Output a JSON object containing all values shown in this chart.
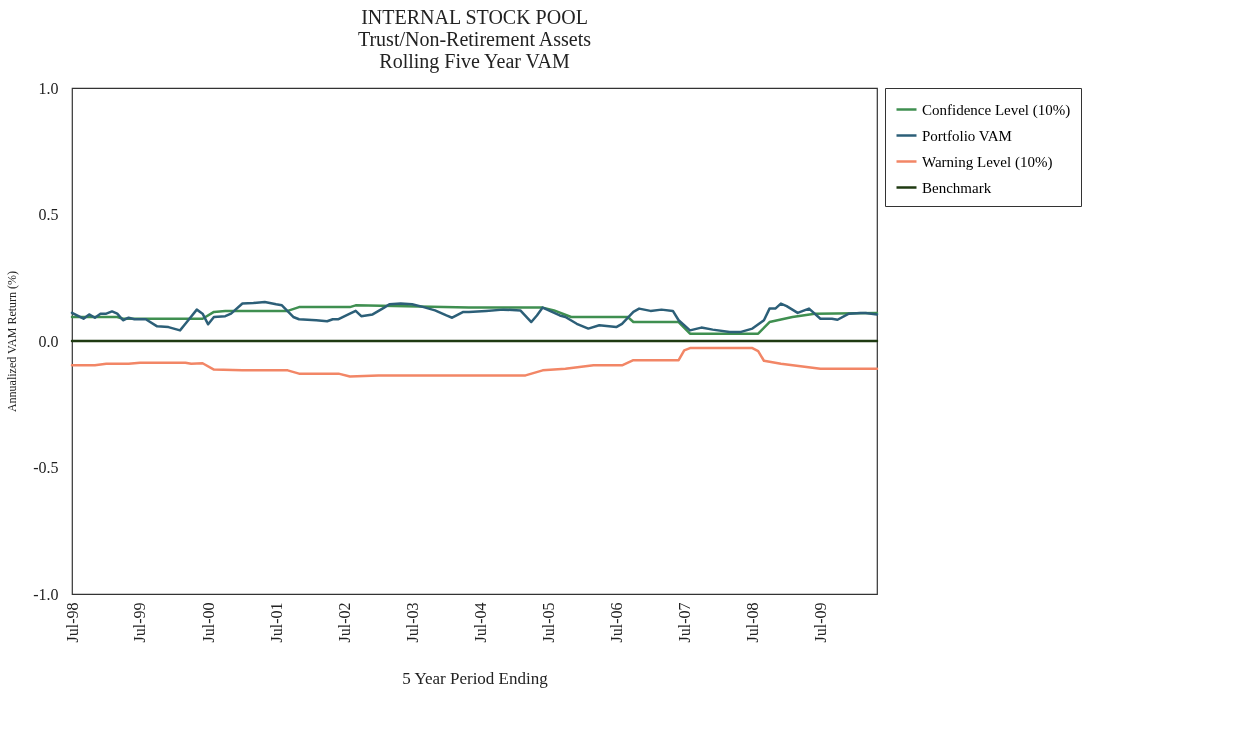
{
  "chart_data": {
    "type": "line",
    "title": "INTERNAL STOCK POOL",
    "subtitle": "Trust/Non-Retirement Assets\nRolling Five Year VAM",
    "xlabel": "5 Year Period Ending",
    "ylabel": "Annualized VAM Return (%)",
    "xlim": [
      "1998-07",
      "2010-05"
    ],
    "xticks": [
      {
        "value": "1998-07",
        "label": "Jul-98"
      },
      {
        "value": "1999-07",
        "label": "Jul-99"
      },
      {
        "value": "2000-07",
        "label": "Jul-00"
      },
      {
        "value": "2001-07",
        "label": "Jul-01"
      },
      {
        "value": "2002-07",
        "label": "Jul-02"
      },
      {
        "value": "2003-07",
        "label": "Jul-03"
      },
      {
        "value": "2004-07",
        "label": "Jul-04"
      },
      {
        "value": "2005-07",
        "label": "Jul-05"
      },
      {
        "value": "2006-07",
        "label": "Jul-06"
      },
      {
        "value": "2007-07",
        "label": "Jul-07"
      },
      {
        "value": "2008-07",
        "label": "Jul-08"
      },
      {
        "value": "2009-07",
        "label": "Jul-09"
      }
    ],
    "ylim": [
      -1,
      1
    ],
    "yticks": [
      {
        "value": 1,
        "label": "1.0"
      },
      0.5,
      {
        "value": 0,
        "label": "0.0"
      },
      -0.5,
      {
        "value": -1,
        "label": "-1.0"
      }
    ],
    "grid": false,
    "legend": "right",
    "marker": "none",
    "line_style": "solid",
    "series": [
      {
        "name": "Confidence Level (10%)",
        "color": "#3f8f50",
        "x": [
          "1998-07",
          "1999-03",
          "1999-04",
          "2000-06",
          "2000-08",
          "2000-10",
          "2001-09",
          "2001-11",
          "2002-08",
          "2002-09",
          "2004-05",
          "2005-06",
          "2005-08",
          "2005-11",
          "2006-09",
          "2006-10",
          "2007-06",
          "2007-08",
          "2008-08",
          "2008-10",
          "2009-02",
          "2009-06",
          "2010-05"
        ],
        "values": [
          0.095,
          0.095,
          0.088,
          0.088,
          0.115,
          0.119,
          0.119,
          0.134,
          0.134,
          0.141,
          0.132,
          0.132,
          0.121,
          0.095,
          0.095,
          0.075,
          0.075,
          0.029,
          0.029,
          0.075,
          0.095,
          0.108,
          0.111
        ]
      },
      {
        "name": "Portfolio VAM",
        "color": "#2c5f78",
        "x": [
          "1998-07",
          "1998-09",
          "1998-10",
          "1998-11",
          "1998-12",
          "1999-01",
          "1999-02",
          "1999-03",
          "1999-04",
          "1999-05",
          "1999-06",
          "1999-08",
          "1999-10",
          "1999-12",
          "2000-02",
          "2000-03",
          "2000-05",
          "2000-06",
          "2000-07",
          "2000-08",
          "2000-10",
          "2000-11",
          "2001-01",
          "2001-03",
          "2001-05",
          "2001-07",
          "2001-08",
          "2001-10",
          "2001-11",
          "2002-02",
          "2002-04",
          "2002-05",
          "2002-06",
          "2002-08",
          "2002-09",
          "2002-10",
          "2002-12",
          "2003-02",
          "2003-03",
          "2003-05",
          "2003-07",
          "2003-09",
          "2003-11",
          "2004-01",
          "2004-02",
          "2004-04",
          "2004-05",
          "2004-08",
          "2004-11",
          "2005-02",
          "2005-04",
          "2005-05",
          "2005-06",
          "2005-09",
          "2005-10",
          "2005-12",
          "2006-02",
          "2006-04",
          "2006-07",
          "2006-08",
          "2006-10",
          "2006-11",
          "2007-01",
          "2007-03",
          "2007-05",
          "2007-06",
          "2007-08",
          "2007-10",
          "2007-12",
          "2008-03",
          "2008-05",
          "2008-07",
          "2008-09",
          "2008-10",
          "2008-11",
          "2008-12",
          "2009-01",
          "2009-03",
          "2009-05",
          "2009-07",
          "2009-09",
          "2009-10",
          "2009-12",
          "2010-02",
          "2010-03",
          "2010-05"
        ],
        "values": [
          0.111,
          0.088,
          0.105,
          0.092,
          0.108,
          0.108,
          0.117,
          0.108,
          0.082,
          0.092,
          0.086,
          0.086,
          0.058,
          0.055,
          0.042,
          0.068,
          0.124,
          0.108,
          0.066,
          0.095,
          0.098,
          0.108,
          0.148,
          0.15,
          0.154,
          0.145,
          0.141,
          0.095,
          0.086,
          0.082,
          0.078,
          0.086,
          0.086,
          0.108,
          0.119,
          0.098,
          0.105,
          0.132,
          0.145,
          0.148,
          0.145,
          0.134,
          0.121,
          0.101,
          0.092,
          0.115,
          0.115,
          0.119,
          0.124,
          0.121,
          0.075,
          0.101,
          0.132,
          0.101,
          0.095,
          0.068,
          0.049,
          0.062,
          0.055,
          0.068,
          0.115,
          0.128,
          0.119,
          0.124,
          0.119,
          0.082,
          0.042,
          0.053,
          0.045,
          0.036,
          0.036,
          0.049,
          0.082,
          0.128,
          0.128,
          0.148,
          0.138,
          0.111,
          0.128,
          0.088,
          0.088,
          0.084,
          0.108,
          0.111,
          0.111,
          0.105
        ]
      },
      {
        "name": "Warning Level (10%)",
        "color": "#f28666",
        "x": [
          "1998-07",
          "1998-11",
          "1999-01",
          "1999-05",
          "1999-07",
          "2000-03",
          "2000-04",
          "2000-06",
          "2000-08",
          "2001-01",
          "2001-09",
          "2001-11",
          "2002-06",
          "2002-08",
          "2003-01",
          "2005-03",
          "2005-06",
          "2005-10",
          "2006-03",
          "2006-08",
          "2006-10",
          "2007-06",
          "2007-07",
          "2007-08",
          "2008-07",
          "2008-08",
          "2008-09",
          "2008-12",
          "2009-07",
          "2010-05"
        ],
        "values": [
          -0.096,
          -0.096,
          -0.09,
          -0.09,
          -0.086,
          -0.086,
          -0.09,
          -0.088,
          -0.113,
          -0.116,
          -0.116,
          -0.129,
          -0.129,
          -0.14,
          -0.136,
          -0.136,
          -0.116,
          -0.11,
          -0.096,
          -0.096,
          -0.076,
          -0.076,
          -0.037,
          -0.028,
          -0.028,
          -0.04,
          -0.078,
          -0.09,
          -0.11,
          -0.11
        ]
      },
      {
        "name": "Benchmark",
        "color": "#1f3a12",
        "x": [
          "1998-07",
          "2010-05"
        ],
        "values": [
          0,
          0
        ]
      }
    ]
  }
}
